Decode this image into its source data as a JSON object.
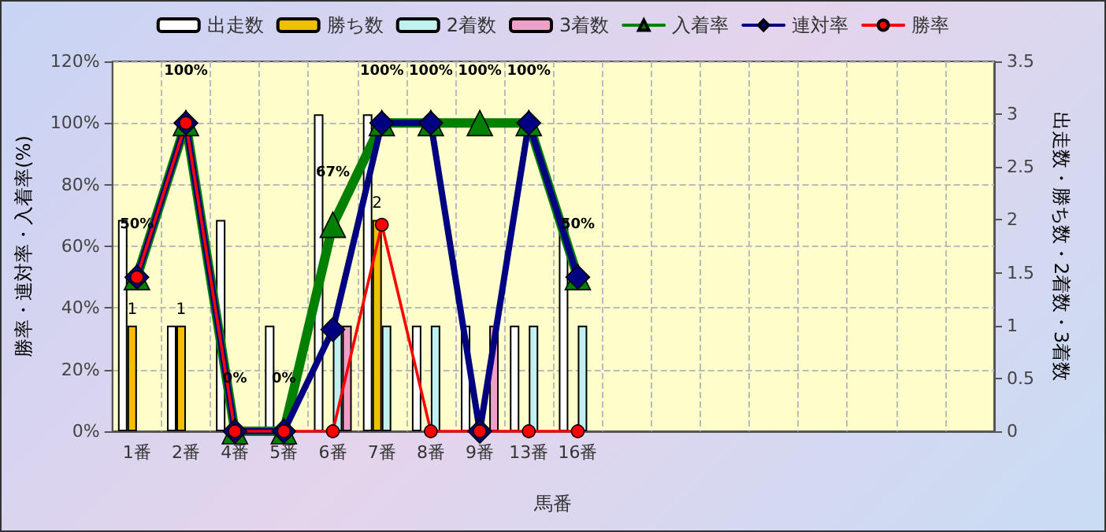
{
  "chart_data": {
    "type": "bar",
    "categories": [
      "1番",
      "2番",
      "4番",
      "5番",
      "6番",
      "7番",
      "8番",
      "9番",
      "13番",
      "16番",
      null,
      null,
      null,
      null,
      null,
      null,
      null,
      null
    ],
    "xlabel": "馬番",
    "ylabel": "勝率・連対率・入着率(%)",
    "y2label": "出走数・勝ち数・2着数・3着数",
    "ylim": [
      0,
      120
    ],
    "yticks": [
      {
        "value": 0,
        "label": "0%"
      },
      {
        "value": 20,
        "label": "20%"
      },
      {
        "value": 40,
        "label": "40%"
      },
      {
        "value": 60,
        "label": "60%"
      },
      {
        "value": 80,
        "label": "80%"
      },
      {
        "value": 100,
        "label": "100%"
      },
      {
        "value": 120,
        "label": "120%"
      }
    ],
    "y2lim": [
      0,
      3.5
    ],
    "y2ticks": [
      0,
      0.5,
      1,
      1.5,
      2,
      2.5,
      3,
      3.5
    ],
    "grid": true,
    "legend": "top",
    "series": [
      {
        "name": "出走数",
        "axis": "y2",
        "color": "#ffffff",
        "values": [
          2,
          1,
          2,
          1,
          3,
          3,
          1,
          1,
          1,
          2,
          null,
          null,
          null,
          null,
          null,
          null,
          null,
          null
        ]
      },
      {
        "name": "勝ち数",
        "axis": "y2",
        "color": "#f0c000",
        "values": [
          1,
          1,
          0,
          0,
          0,
          2,
          0,
          0,
          0,
          0,
          null,
          null,
          null,
          null,
          null,
          null,
          null,
          null
        ],
        "value_labels": [
          "1",
          "1",
          null,
          null,
          null,
          "2",
          null,
          null,
          null,
          null,
          null,
          null,
          null,
          null,
          null,
          null,
          null,
          null
        ]
      },
      {
        "name": "2着数",
        "axis": "y2",
        "color": "#c0f0f0",
        "values": [
          0,
          0,
          0,
          0,
          1,
          1,
          1,
          0,
          1,
          1,
          null,
          null,
          null,
          null,
          null,
          null,
          null,
          null
        ]
      },
      {
        "name": "3着数",
        "axis": "y2",
        "color": "#f0a0c8",
        "values": [
          0,
          0,
          0,
          0,
          1,
          0,
          0,
          1,
          0,
          0,
          null,
          null,
          null,
          null,
          null,
          null,
          null,
          null
        ]
      },
      {
        "name": "入着率",
        "type": "line",
        "color": "#008000",
        "marker": "triangle",
        "values": [
          50,
          100,
          0,
          0,
          67,
          100,
          100,
          100,
          100,
          50,
          null,
          null,
          null,
          null,
          null,
          null,
          null,
          null
        ],
        "value_labels": [
          "50%",
          "100%",
          "0%",
          "0%",
          "67%",
          "100%",
          "100%",
          "100%",
          "100%",
          "50%",
          null,
          null,
          null,
          null,
          null,
          null,
          null,
          null
        ]
      },
      {
        "name": "連対率",
        "type": "line",
        "color": "#000080",
        "marker": "diamond",
        "values": [
          50,
          100,
          0,
          0,
          33,
          100,
          100,
          0,
          100,
          50,
          null,
          null,
          null,
          null,
          null,
          null,
          null,
          null
        ]
      },
      {
        "name": "勝率",
        "type": "line",
        "color": "#ff0000",
        "marker": "circle",
        "values": [
          50,
          100,
          0,
          0,
          0,
          67,
          0,
          0,
          0,
          0,
          null,
          null,
          null,
          null,
          null,
          null,
          null,
          null
        ]
      }
    ]
  }
}
